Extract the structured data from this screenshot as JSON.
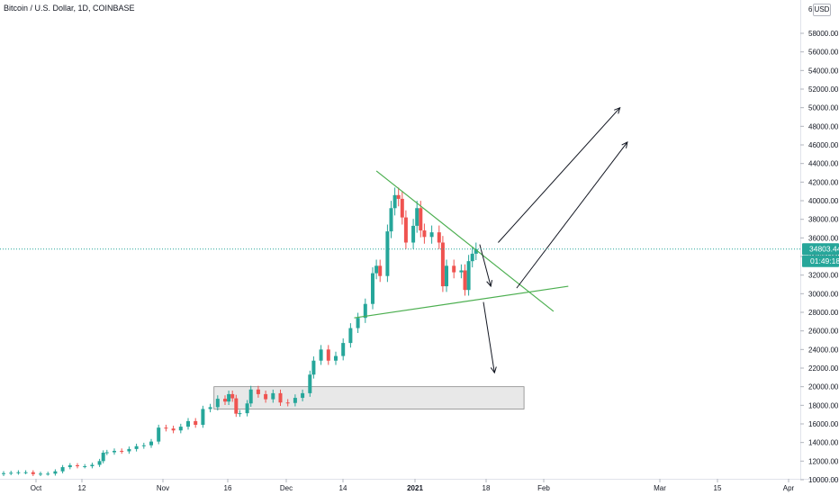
{
  "header": {
    "title": "Bitcoin / U.S. Dollar, 1D, COINBASE"
  },
  "currency_button": "USD",
  "price_scale": {
    "top_label": "6",
    "labels": [
      "58000.00",
      "56000.00",
      "54000.00",
      "52000.00",
      "50000.00",
      "48000.00",
      "46000.00",
      "44000.00",
      "42000.00",
      "40000.00",
      "38000.00",
      "36000.00",
      "34000.00",
      "32000.00",
      "30000.00",
      "28000.00",
      "26000.00",
      "24000.00",
      "22000.00",
      "20000.00",
      "18000.00",
      "16000.00",
      "14000.00",
      "12000.00",
      "10000.00"
    ]
  },
  "time_scale": {
    "labels": [
      "Oct",
      "12",
      "Nov",
      "16",
      "Dec",
      "14",
      "2021",
      "18",
      "Feb",
      "Mar",
      "15",
      "Apr"
    ]
  },
  "last_price": {
    "value": "34803.44",
    "countdown": "01:49:18"
  },
  "colors": {
    "up": "#26a69a",
    "down": "#ef5350",
    "trendline": "#4caf50",
    "price_line": "#26a69a",
    "zone_fill": "#e8e8e8"
  },
  "chart_data": {
    "type": "candlestick",
    "title": "Bitcoin / U.S. Dollar, 1D, COINBASE",
    "ylim": [
      9000,
      60000
    ],
    "candles": [
      {
        "date": "2020-09-24",
        "close": 10700
      },
      {
        "date": "2020-09-26",
        "close": 10750
      },
      {
        "date": "2020-09-28",
        "close": 10800
      },
      {
        "date": "2020-09-30",
        "close": 10800
      },
      {
        "date": "2020-10-02",
        "close": 10600
      },
      {
        "date": "2020-10-04",
        "close": 10650
      },
      {
        "date": "2020-10-06",
        "close": 10650
      },
      {
        "date": "2020-10-08",
        "close": 10900
      },
      {
        "date": "2020-10-10",
        "close": 11350
      },
      {
        "date": "2020-10-12",
        "close": 11550
      },
      {
        "date": "2020-10-14",
        "close": 11450
      },
      {
        "date": "2020-10-16",
        "close": 11450
      },
      {
        "date": "2020-10-18",
        "close": 11600
      },
      {
        "date": "2020-10-20",
        "close": 12000
      },
      {
        "date": "2020-10-21",
        "close": 12900
      },
      {
        "date": "2020-10-22",
        "close": 12950
      },
      {
        "date": "2020-10-24",
        "close": 13100
      },
      {
        "date": "2020-10-26",
        "close": 13050
      },
      {
        "date": "2020-10-28",
        "close": 13300
      },
      {
        "date": "2020-10-30",
        "close": 13600
      },
      {
        "date": "2020-11-01",
        "close": 13700
      },
      {
        "date": "2020-11-03",
        "close": 14100
      },
      {
        "date": "2020-11-05",
        "close": 15600
      },
      {
        "date": "2020-11-07",
        "close": 15500
      },
      {
        "date": "2020-11-09",
        "close": 15300
      },
      {
        "date": "2020-11-11",
        "close": 15700
      },
      {
        "date": "2020-11-13",
        "close": 16300
      },
      {
        "date": "2020-11-15",
        "close": 15900
      },
      {
        "date": "2020-11-17",
        "close": 17600
      },
      {
        "date": "2020-11-19",
        "close": 17800
      },
      {
        "date": "2020-11-21",
        "close": 18700
      },
      {
        "date": "2020-11-23",
        "close": 18400
      },
      {
        "date": "2020-11-24",
        "close": 19200
      },
      {
        "date": "2020-11-25",
        "close": 18750
      },
      {
        "date": "2020-11-26",
        "close": 17100
      },
      {
        "date": "2020-11-27",
        "close": 17150
      },
      {
        "date": "2020-11-29",
        "close": 18200
      },
      {
        "date": "2020-11-30",
        "close": 19700
      },
      {
        "date": "2020-12-02",
        "close": 19200
      },
      {
        "date": "2020-12-04",
        "close": 18650
      },
      {
        "date": "2020-12-06",
        "close": 19300
      },
      {
        "date": "2020-12-08",
        "close": 18300
      },
      {
        "date": "2020-12-10",
        "close": 18250
      },
      {
        "date": "2020-12-12",
        "close": 18800
      },
      {
        "date": "2020-12-14",
        "close": 19300
      },
      {
        "date": "2020-12-16",
        "close": 21300
      },
      {
        "date": "2020-12-17",
        "close": 22800
      },
      {
        "date": "2020-12-19",
        "close": 24000
      },
      {
        "date": "2020-12-21",
        "close": 22800
      },
      {
        "date": "2020-12-23",
        "close": 23300
      },
      {
        "date": "2020-12-25",
        "close": 24700
      },
      {
        "date": "2020-12-27",
        "close": 26300
      },
      {
        "date": "2020-12-29",
        "close": 27400
      },
      {
        "date": "2020-12-31",
        "close": 28900
      },
      {
        "date": "2021-01-02",
        "close": 32200
      },
      {
        "date": "2021-01-03",
        "close": 33000
      },
      {
        "date": "2021-01-04",
        "close": 31900
      },
      {
        "date": "2021-01-06",
        "close": 36700
      },
      {
        "date": "2021-01-07",
        "close": 39200
      },
      {
        "date": "2021-01-08",
        "close": 40600
      },
      {
        "date": "2021-01-09",
        "close": 40200
      },
      {
        "date": "2021-01-10",
        "close": 38200
      },
      {
        "date": "2021-01-11",
        "close": 35500
      },
      {
        "date": "2021-01-13",
        "close": 37300
      },
      {
        "date": "2021-01-14",
        "close": 39200
      },
      {
        "date": "2021-01-15",
        "close": 36800
      },
      {
        "date": "2021-01-16",
        "close": 36100
      },
      {
        "date": "2021-01-18",
        "close": 36600
      },
      {
        "date": "2021-01-20",
        "close": 35500
      },
      {
        "date": "2021-01-21",
        "close": 30800
      },
      {
        "date": "2021-01-22",
        "close": 33000
      },
      {
        "date": "2021-01-24",
        "close": 32300
      },
      {
        "date": "2021-01-26",
        "close": 32500
      },
      {
        "date": "2021-01-27",
        "close": 30400
      },
      {
        "date": "2021-01-28",
        "close": 33500
      },
      {
        "date": "2021-01-29",
        "close": 34300
      },
      {
        "date": "2021-01-30",
        "close": 34800
      }
    ],
    "trendlines": [
      {
        "name": "upper",
        "from": {
          "date": "2021-01-03",
          "price": 43200
        },
        "to": {
          "date": "2021-02-20",
          "price": 28100
        }
      },
      {
        "name": "lower",
        "from": {
          "date": "2020-12-28",
          "price": 27400
        },
        "to": {
          "date": "2021-02-24",
          "price": 30800
        }
      }
    ],
    "zone": {
      "from": "2020-11-20",
      "to": "2021-02-12",
      "low": 17600,
      "high": 20000
    },
    "arrows": [
      {
        "from": {
          "date": "2021-02-05",
          "price": 35500
        },
        "to": {
          "date": "2021-03-10",
          "price": 50000
        }
      },
      {
        "from": {
          "date": "2021-02-10",
          "price": 30600
        },
        "to": {
          "date": "2021-03-12",
          "price": 46300
        }
      },
      {
        "from": {
          "date": "2021-01-31",
          "price": 35300
        },
        "to": {
          "date": "2021-02-03",
          "price": 30800
        }
      },
      {
        "from": {
          "date": "2021-02-01",
          "price": 29100
        },
        "to": {
          "date": "2021-02-04",
          "price": 21500
        }
      }
    ]
  }
}
